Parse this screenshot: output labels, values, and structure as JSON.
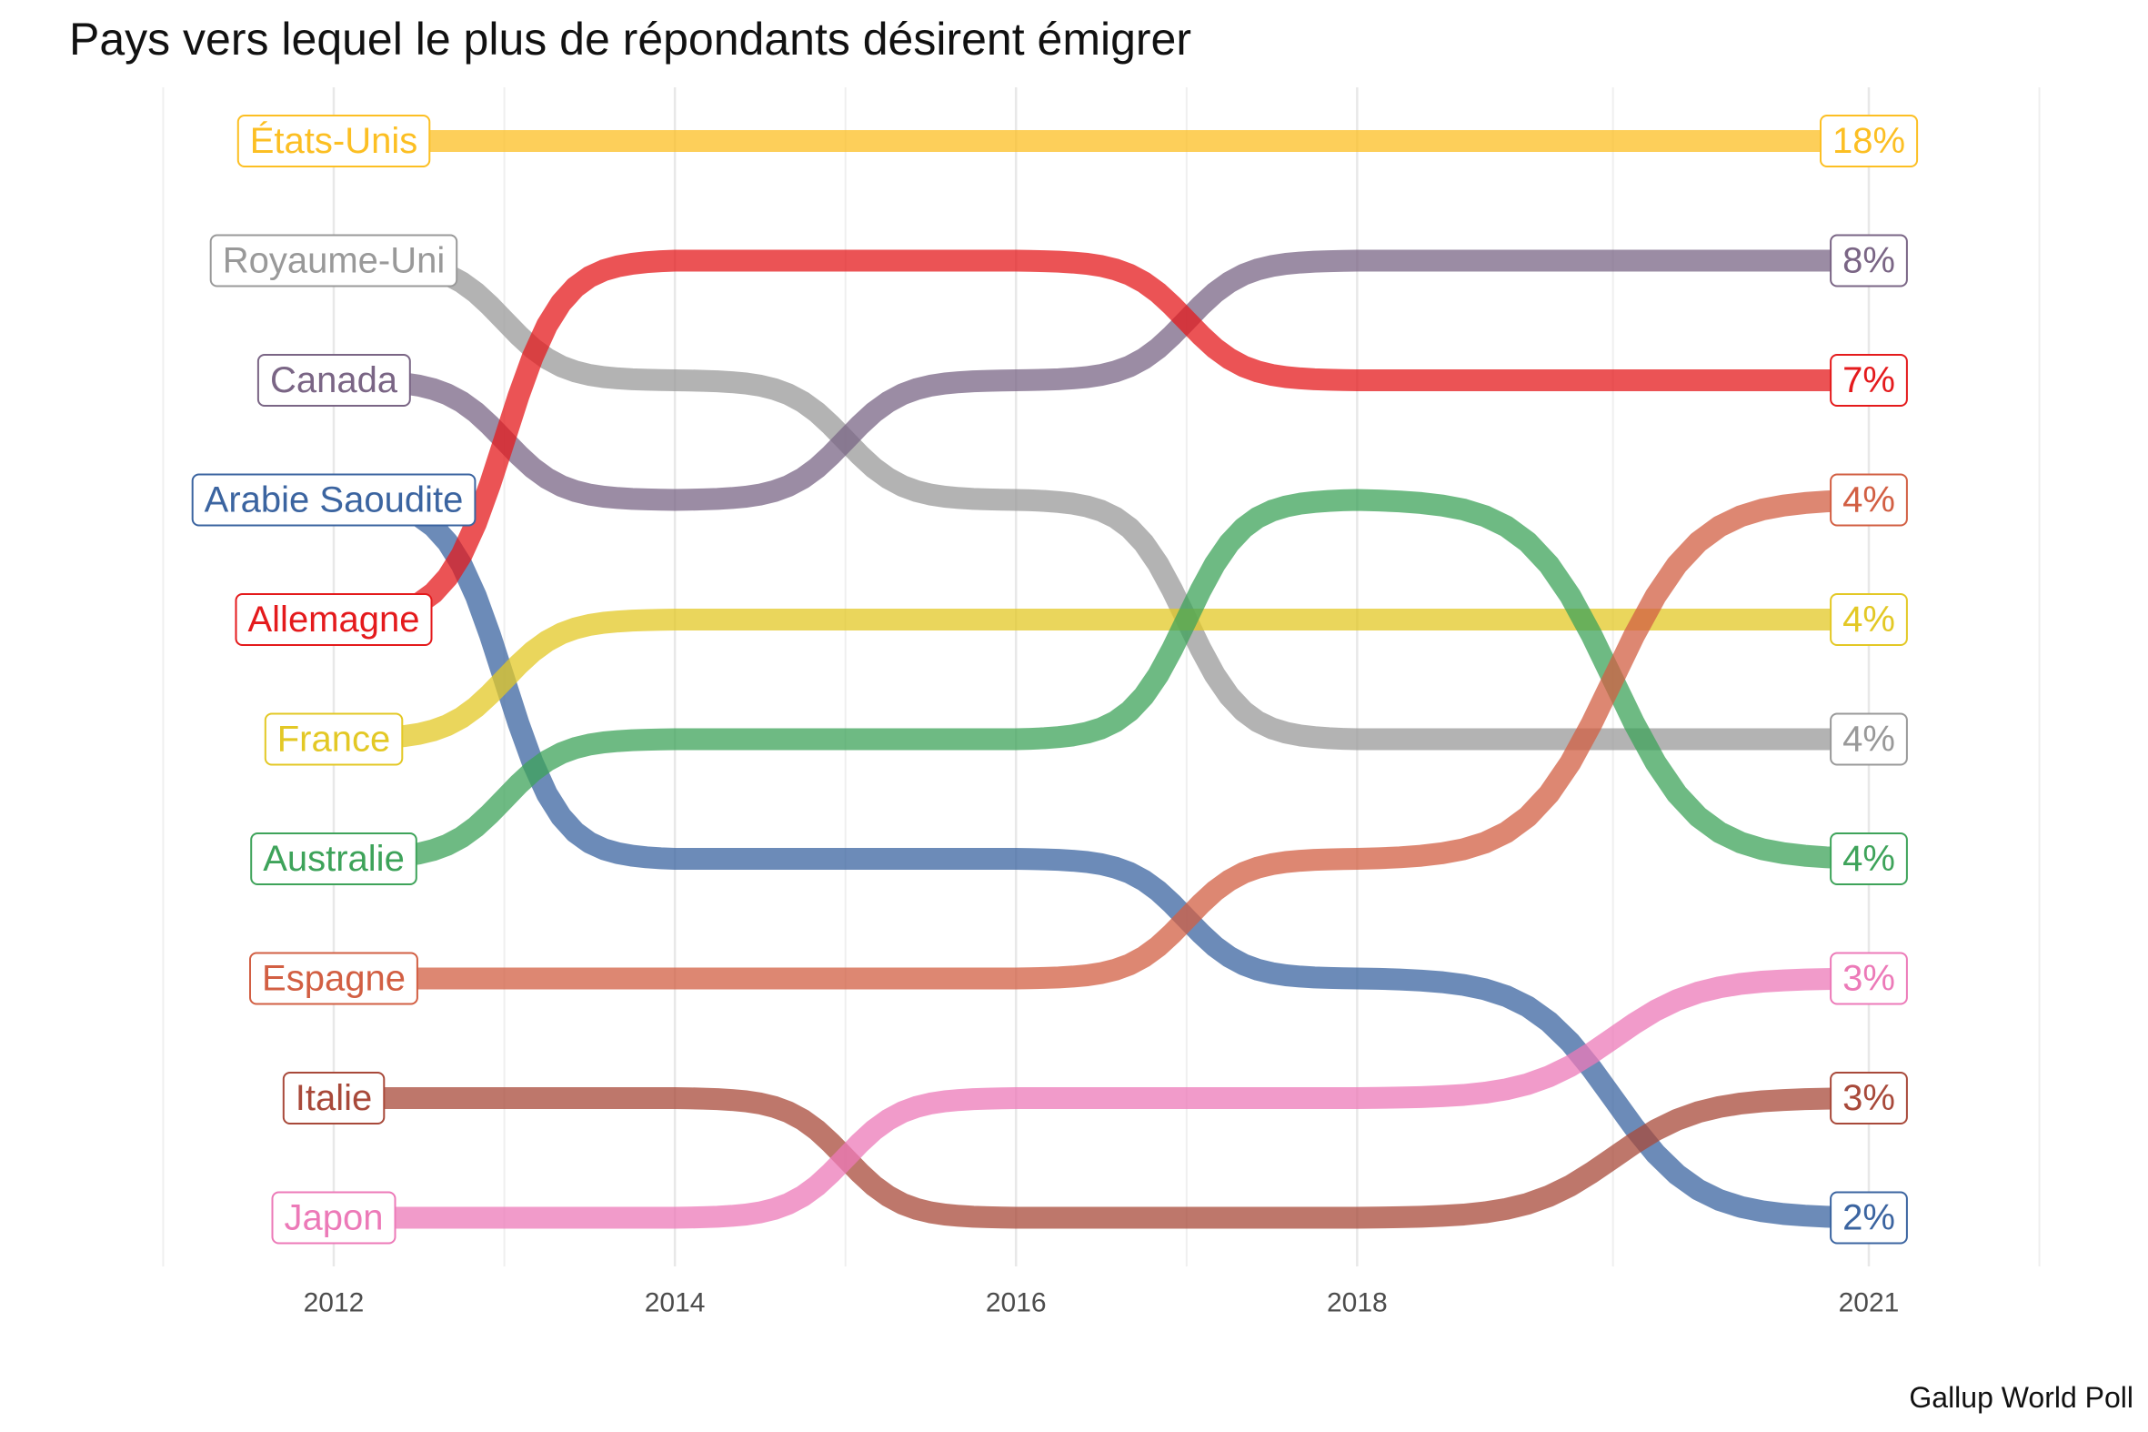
{
  "chart_data": {
    "type": "line",
    "subtype": "bump",
    "title": "Pays vers lequel le plus de répondants désirent émigrer",
    "caption": "Gallup World Poll",
    "xlabel": "",
    "ylabel": "",
    "x": [
      "2012",
      "2014",
      "2016",
      "2018",
      "2021"
    ],
    "x_numeric": [
      2012,
      2014,
      2016,
      2018,
      2021
    ],
    "y_axis": "rank (1 = top), no axis labels shown",
    "grid": "vertical only",
    "legend": "none (direct labels)",
    "series": [
      {
        "name": "États-Unis",
        "color": "#fcbf23",
        "ranks": [
          1,
          1,
          1,
          1,
          1
        ],
        "final_label": "18%"
      },
      {
        "name": "Royaume-Uni",
        "color": "#999999",
        "ranks": [
          2,
          3,
          4,
          6,
          6
        ],
        "final_label": "4%"
      },
      {
        "name": "Canada",
        "color": "#7a6585",
        "ranks": [
          3,
          4,
          3,
          2,
          2
        ],
        "final_label": "8%"
      },
      {
        "name": "Arabie Saoudite",
        "color": "#3b64a0",
        "ranks": [
          4,
          7,
          7,
          8,
          10
        ],
        "final_label": "2%"
      },
      {
        "name": "Allemagne",
        "color": "#e41a1c",
        "ranks": [
          5,
          2,
          2,
          3,
          3
        ],
        "final_label": "7%"
      },
      {
        "name": "France",
        "color": "#e3c825",
        "ranks": [
          6,
          5,
          5,
          5,
          5
        ],
        "final_label": "4%"
      },
      {
        "name": "Australie",
        "color": "#3ea35a",
        "ranks": [
          7,
          6,
          6,
          4,
          7
        ],
        "final_label": "4%"
      },
      {
        "name": "Espagne",
        "color": "#d25f43",
        "ranks": [
          8,
          8,
          8,
          7,
          4
        ],
        "final_label": "4%"
      },
      {
        "name": "Italie",
        "color": "#a8493a",
        "ranks": [
          9,
          9,
          10,
          10,
          9
        ],
        "final_label": "3%"
      },
      {
        "name": "Japon",
        "color": "#ec7ab8",
        "ranks": [
          10,
          10,
          9,
          9,
          8
        ],
        "final_label": "3%"
      }
    ]
  }
}
